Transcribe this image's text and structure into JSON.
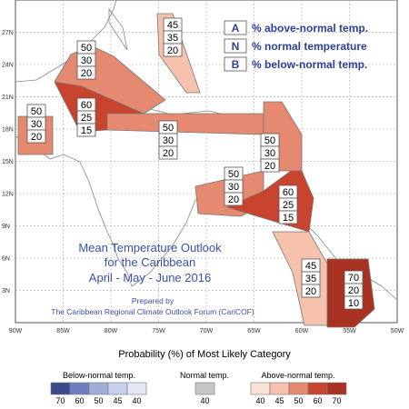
{
  "map": {
    "longitudes": [
      "90W",
      "85W",
      "80W",
      "75W",
      "70W",
      "65W",
      "60W",
      "55W",
      "50W"
    ],
    "latitudes": [
      "27N",
      "24N",
      "21N",
      "18N",
      "15N",
      "12N",
      "9N",
      "6N",
      "3N"
    ],
    "land_color": "#ffffff",
    "grid_color": "#9a9a9a"
  },
  "legend": {
    "a_key": "A",
    "a_text": "% above-normal temp.",
    "n_key": "N",
    "n_text": "% normal temperature",
    "b_key": "B",
    "b_text": "% below-normal temp."
  },
  "title": {
    "line1": "Mean Temperature Outlook",
    "line2": "for the Caribbean",
    "line3": "April - May - June 2016"
  },
  "credit": {
    "line1": "Prepared by",
    "line2": "The Caribbean Regional Climate Outlook Forum (CariCOF)"
  },
  "regions": [
    {
      "name": "Bahamas",
      "above": 45,
      "normal": 35,
      "below": 20,
      "color": "#f6c1ad"
    },
    {
      "name": "Cuba",
      "above": 50,
      "normal": 30,
      "below": 20,
      "color": "#e58a70"
    },
    {
      "name": "Belize",
      "above": 50,
      "normal": 30,
      "below": 20,
      "color": "#e58a70"
    },
    {
      "name": "Jamaica / Cayman",
      "above": 60,
      "normal": 25,
      "below": 15,
      "color": "#c9442f"
    },
    {
      "name": "Hispaniola / Puerto Rico",
      "above": 50,
      "normal": 30,
      "below": 20,
      "color": "#e58a70"
    },
    {
      "name": "Leeward / Windward Islands",
      "above": 50,
      "normal": 30,
      "below": 20,
      "color": "#e58a70"
    },
    {
      "name": "ABC Islands",
      "above": 50,
      "normal": 30,
      "below": 20,
      "color": "#e58a70"
    },
    {
      "name": "Trinidad / Tobago",
      "above": 60,
      "normal": 25,
      "below": 15,
      "color": "#c9442f"
    },
    {
      "name": "Guyana",
      "above": 45,
      "normal": 35,
      "below": 20,
      "color": "#f6c1ad"
    },
    {
      "name": "Suriname",
      "above": 70,
      "normal": 20,
      "below": 10,
      "color": "#a83322"
    }
  ],
  "scale": {
    "title": "Probability (%) of Most Likely Category",
    "below_label": "Below-normal temp.",
    "normal_label": "Normal temp.",
    "above_label": "Above-normal temp.",
    "below": [
      {
        "value": "70",
        "color": "#3b4a8c"
      },
      {
        "value": "60",
        "color": "#6d7fc0"
      },
      {
        "value": "50",
        "color": "#9eaed9"
      },
      {
        "value": "45",
        "color": "#c7d0ec"
      },
      {
        "value": "40",
        "color": "#e4e8f6"
      }
    ],
    "normal": [
      {
        "value": "40",
        "color": "#c6c6c6"
      }
    ],
    "above": [
      {
        "value": "40",
        "color": "#fbe0d4"
      },
      {
        "value": "45",
        "color": "#f6c1ad"
      },
      {
        "value": "50",
        "color": "#e58a70"
      },
      {
        "value": "60",
        "color": "#c9442f"
      },
      {
        "value": "70",
        "color": "#a83322"
      }
    ]
  }
}
